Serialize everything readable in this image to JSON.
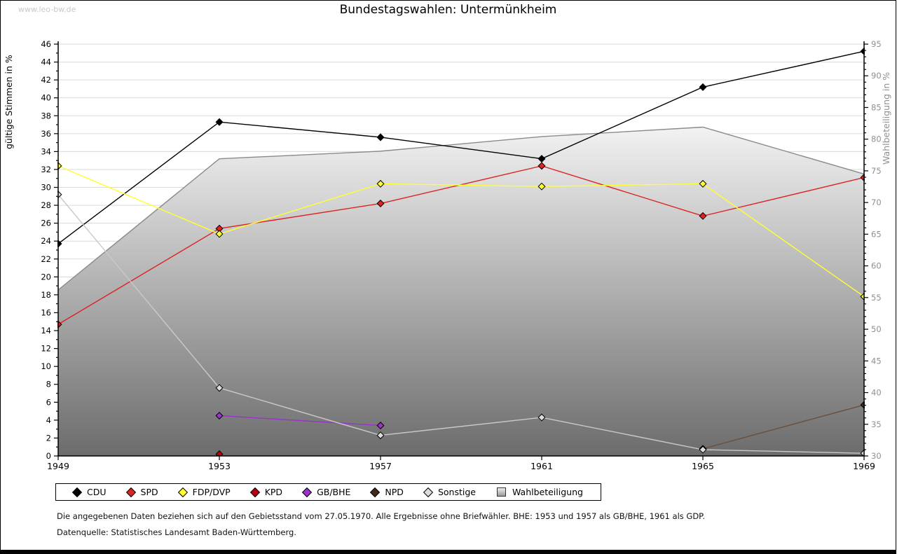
{
  "watermark": "www.leo-bw.de",
  "title": "Bundestagswahlen: Untermünkheim",
  "footnotes": {
    "line1": "Die angegebenen Daten beziehen sich auf den Gebietsstand vom 27.05.1970. Alle Ergebnisse ohne Briefwähler. BHE: 1953 und 1957 als GB/BHE, 1961 als GDP.",
    "line2": "Datenquelle: Statistisches Landesamt Baden-Württemberg."
  },
  "chart_data": {
    "type": "line",
    "title": "Bundestagswahlen: Untermünkheim",
    "categories": [
      "1949",
      "1953",
      "1957",
      "1961",
      "1965",
      "1969"
    ],
    "left_axis": {
      "label": "gültige Stimmen in %",
      "min": 0,
      "max": 46,
      "major_step": 2,
      "minor_step": 1
    },
    "right_axis": {
      "label": "Wahlbeteiligung in %",
      "min": 30,
      "max": 95,
      "major_step": 5,
      "minor_step": 1
    },
    "grid": true,
    "legend_position": "bottom",
    "series": [
      {
        "name": "CDU",
        "axis": "left",
        "kind": "line",
        "color": "#000000",
        "marker_color": "#000000",
        "values": [
          23.7,
          37.3,
          35.6,
          33.2,
          41.2,
          45.2
        ]
      },
      {
        "name": "SPD",
        "axis": "left",
        "kind": "line",
        "color": "#dd2222",
        "marker_color": "#dd2222",
        "values": [
          14.7,
          25.4,
          28.2,
          32.4,
          26.8,
          31.1
        ]
      },
      {
        "name": "FDP/DVP",
        "axis": "left",
        "kind": "line",
        "color": "#ffff33",
        "marker_color": "#ffff33",
        "values": [
          32.4,
          24.8,
          30.4,
          30.1,
          30.4,
          17.8
        ]
      },
      {
        "name": "KPD",
        "axis": "left",
        "kind": "line",
        "color": "#bb0011",
        "marker_color": "#bb0011",
        "values": [
          null,
          0.2,
          null,
          null,
          null,
          null
        ]
      },
      {
        "name": "GB/BHE",
        "axis": "left",
        "kind": "line",
        "color": "#9933cc",
        "marker_color": "#9933cc",
        "values": [
          null,
          4.5,
          3.4,
          null,
          null,
          null
        ]
      },
      {
        "name": "NPD",
        "axis": "left",
        "kind": "line",
        "color": "#6b4f3a",
        "marker_color": "#402a1e",
        "values": [
          null,
          null,
          null,
          null,
          0.8,
          5.7
        ]
      },
      {
        "name": "Sonstige",
        "axis": "left",
        "kind": "line",
        "color": "#c9c9c9",
        "marker_color": "#dcdcdc",
        "values": [
          29.2,
          7.6,
          2.3,
          4.3,
          0.7,
          0.3
        ]
      },
      {
        "name": "Wahlbeteiligung",
        "axis": "right",
        "kind": "area",
        "color": "#9a9a9a",
        "values": [
          56.2,
          76.9,
          78.1,
          80.4,
          81.9,
          74.5
        ]
      }
    ]
  },
  "colors": {
    "grid": "#dadada",
    "axis": "#000000",
    "area_border": "#8a8a8a",
    "area_gradient_top": "#f2f2f2",
    "area_gradient_bottom": "#6c6c6c",
    "right_axis_text": "#909090",
    "watermark": "#c9c9c9"
  }
}
